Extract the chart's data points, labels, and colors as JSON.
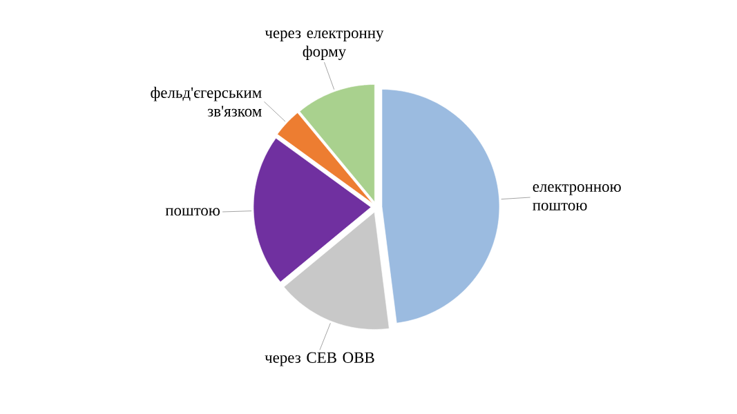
{
  "chart_data": {
    "type": "pie",
    "categories": [
      "електронною поштою",
      "через СЕВ ОВВ",
      "поштою",
      "фельд'єгерським зв'язком",
      "через електронну форму"
    ],
    "values": [
      48,
      16,
      21,
      4,
      11
    ],
    "colors": [
      "#9bbbe0",
      "#c8c8c8",
      "#7030a0",
      "#ed7d31",
      "#a9d18e"
    ]
  }
}
